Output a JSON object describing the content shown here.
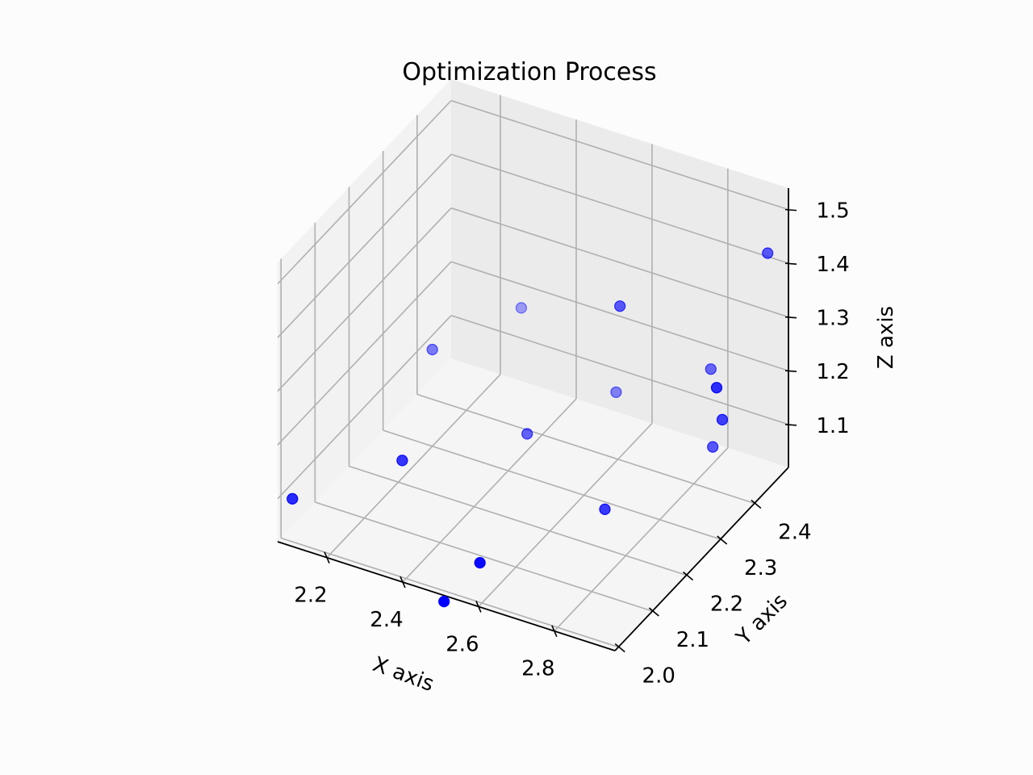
{
  "chart_data": {
    "type": "scatter",
    "projection": "3d",
    "title": "Optimization Process",
    "xlabel": "X axis",
    "ylabel": "Y axis",
    "zlabel": "Z axis",
    "x_ticks": [
      "2.2",
      "2.4",
      "2.6",
      "2.8"
    ],
    "y_ticks": [
      "2.0",
      "2.1",
      "2.2",
      "2.3",
      "2.4"
    ],
    "z_ticks": [
      "1.1",
      "1.2",
      "1.3",
      "1.4",
      "1.5"
    ],
    "xlim": [
      2.07,
      2.96
    ],
    "ylim": [
      1.99,
      2.5
    ],
    "zlim": [
      1.02,
      1.54
    ],
    "grid": true,
    "marker_color": "#0000ff",
    "points": [
      {
        "x": 2.1,
        "y": 2.0,
        "z": 1.1
      },
      {
        "x": 2.3,
        "y": 2.1,
        "z": 1.15
      },
      {
        "x": 2.55,
        "y": 2.05,
        "z": 1.05
      },
      {
        "x": 2.7,
        "y": 2.25,
        "z": 1.05
      },
      {
        "x": 2.85,
        "y": 2.4,
        "z": 1.1
      },
      {
        "x": 2.2,
        "y": 2.3,
        "z": 1.2
      },
      {
        "x": 2.45,
        "y": 2.3,
        "z": 1.1
      },
      {
        "x": 2.55,
        "y": 2.45,
        "z": 1.1
      },
      {
        "x": 2.3,
        "y": 2.45,
        "z": 1.2
      },
      {
        "x": 2.8,
        "y": 2.45,
        "z": 1.2
      },
      {
        "x": 2.92,
        "y": 2.35,
        "z": 1.2
      },
      {
        "x": 2.95,
        "y": 2.3,
        "z": 1.3
      },
      {
        "x": 2.95,
        "y": 2.45,
        "z": 1.45
      },
      {
        "x": 2.65,
        "y": 2.35,
        "z": 1.35
      },
      {
        "x": 2.5,
        "y": 2.0,
        "z": 1.0
      }
    ]
  }
}
